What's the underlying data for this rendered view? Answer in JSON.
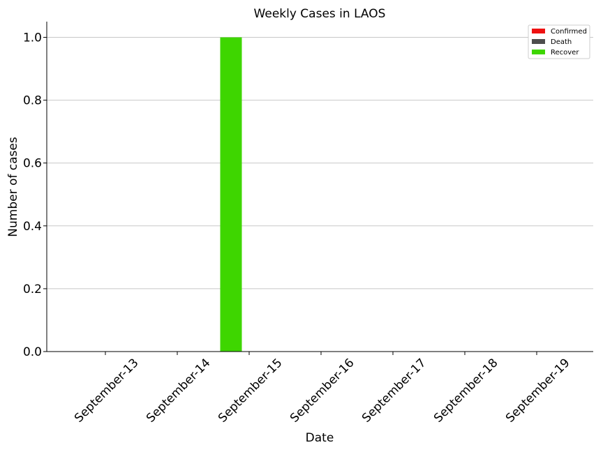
{
  "chart_data": {
    "type": "bar",
    "title": "Weekly Cases in LAOS",
    "xlabel": "Date",
    "ylabel": "Number of cases",
    "categories": [
      "September-13",
      "September-14",
      "September-15",
      "September-16",
      "September-17",
      "September-18",
      "September-19"
    ],
    "series": [
      {
        "name": "Confirmed",
        "values": [
          0,
          0,
          0,
          0,
          0,
          0,
          0
        ],
        "color": "#ee1111"
      },
      {
        "name": "Death",
        "values": [
          0,
          0,
          0,
          0,
          0,
          0,
          0
        ],
        "color": "#4d4d4d"
      },
      {
        "name": "Recover",
        "values": [
          0,
          0,
          1,
          0,
          0,
          0,
          0
        ],
        "color": "#3ed600"
      }
    ],
    "ylim": [
      0,
      1.05
    ],
    "yticks": [
      "0.0",
      "0.2",
      "0.4",
      "0.6",
      "0.8",
      "1.0"
    ],
    "ytick_values": [
      0,
      0.2,
      0.4,
      0.6,
      0.8,
      1.0
    ],
    "grid": "horizontal",
    "legend_position": "top-right"
  }
}
